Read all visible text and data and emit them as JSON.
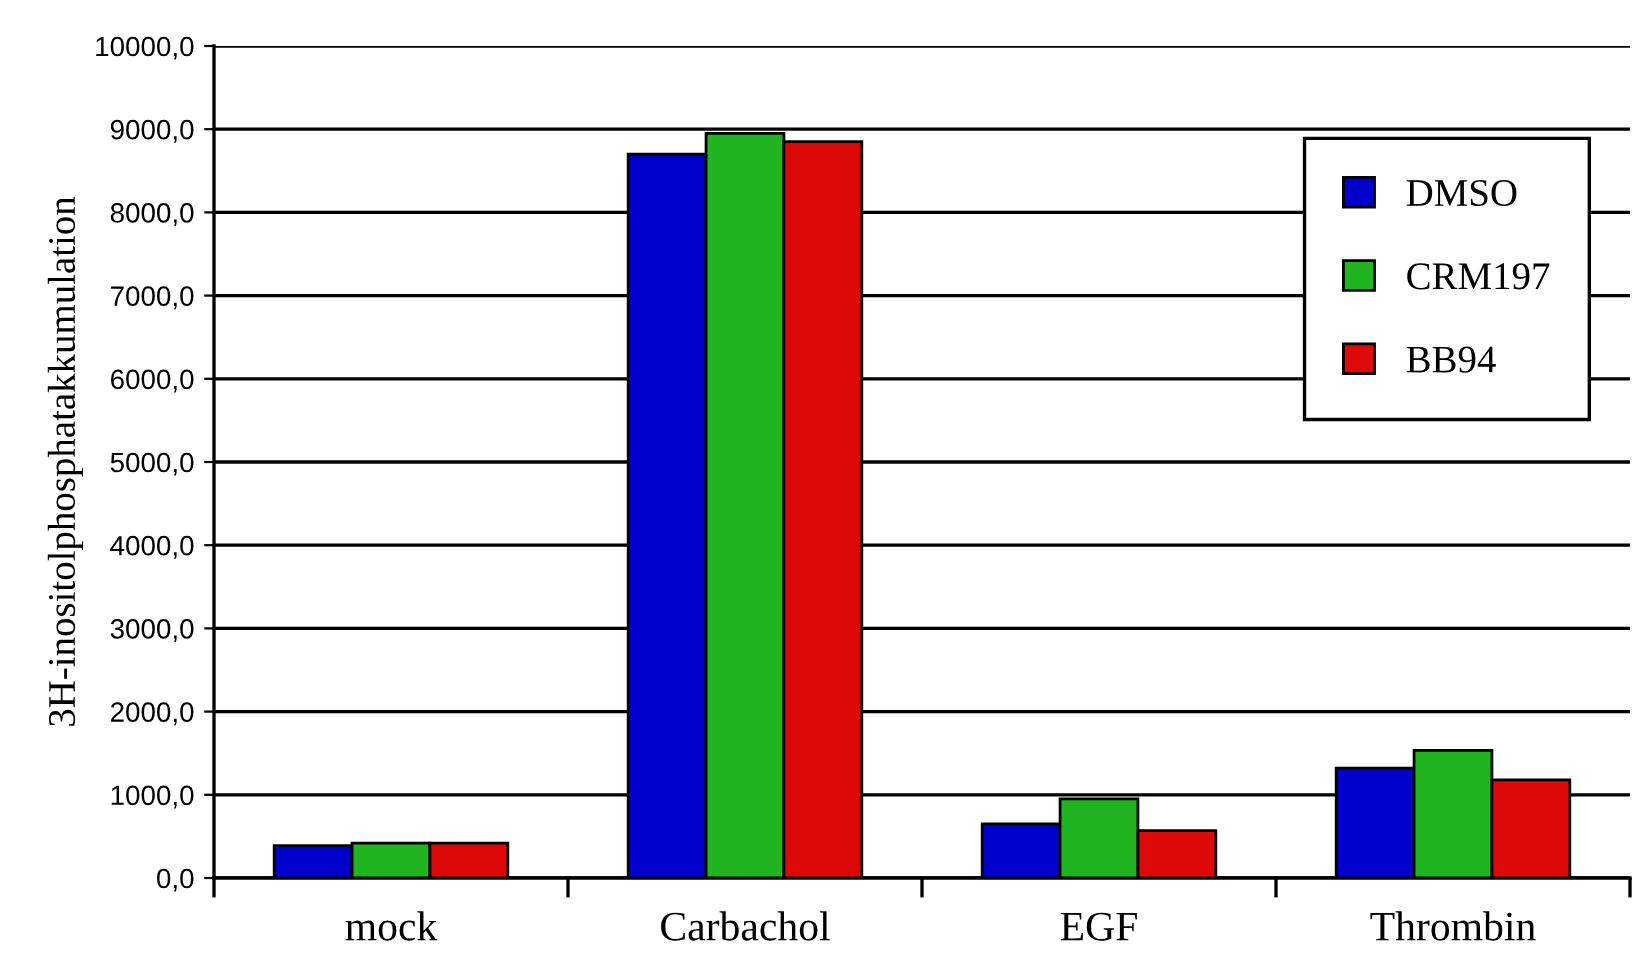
{
  "chart_data": {
    "type": "bar",
    "ylabel": "3H-inositolphosphatakkumulation",
    "categories": [
      "mock",
      "Carbachol",
      "EGF",
      "Thrombin"
    ],
    "series": [
      {
        "name": "DMSO",
        "color": "#0000cc",
        "values": [
          390,
          8700,
          650,
          1320
        ]
      },
      {
        "name": "CRM197",
        "color": "#20b420",
        "values": [
          420,
          8950,
          950,
          1535
        ]
      },
      {
        "name": "BB94",
        "color": "#dd0808",
        "values": [
          420,
          8850,
          570,
          1180
        ]
      }
    ],
    "ylim": [
      0,
      10000
    ],
    "yticks": [
      {
        "value": 0,
        "label": "0,0"
      },
      {
        "value": 1000,
        "label": "1000,0"
      },
      {
        "value": 2000,
        "label": "2000,0"
      },
      {
        "value": 3000,
        "label": "3000,0"
      },
      {
        "value": 4000,
        "label": "4000,0"
      },
      {
        "value": 5000,
        "label": "5000,0"
      },
      {
        "value": 6000,
        "label": "6000,0"
      },
      {
        "value": 7000,
        "label": "7000,0"
      },
      {
        "value": 8000,
        "label": "8000,0"
      },
      {
        "value": 9000,
        "label": "9000,0"
      },
      {
        "value": 10000,
        "label": "10000,0"
      }
    ],
    "grid": "y",
    "legend": "right"
  }
}
